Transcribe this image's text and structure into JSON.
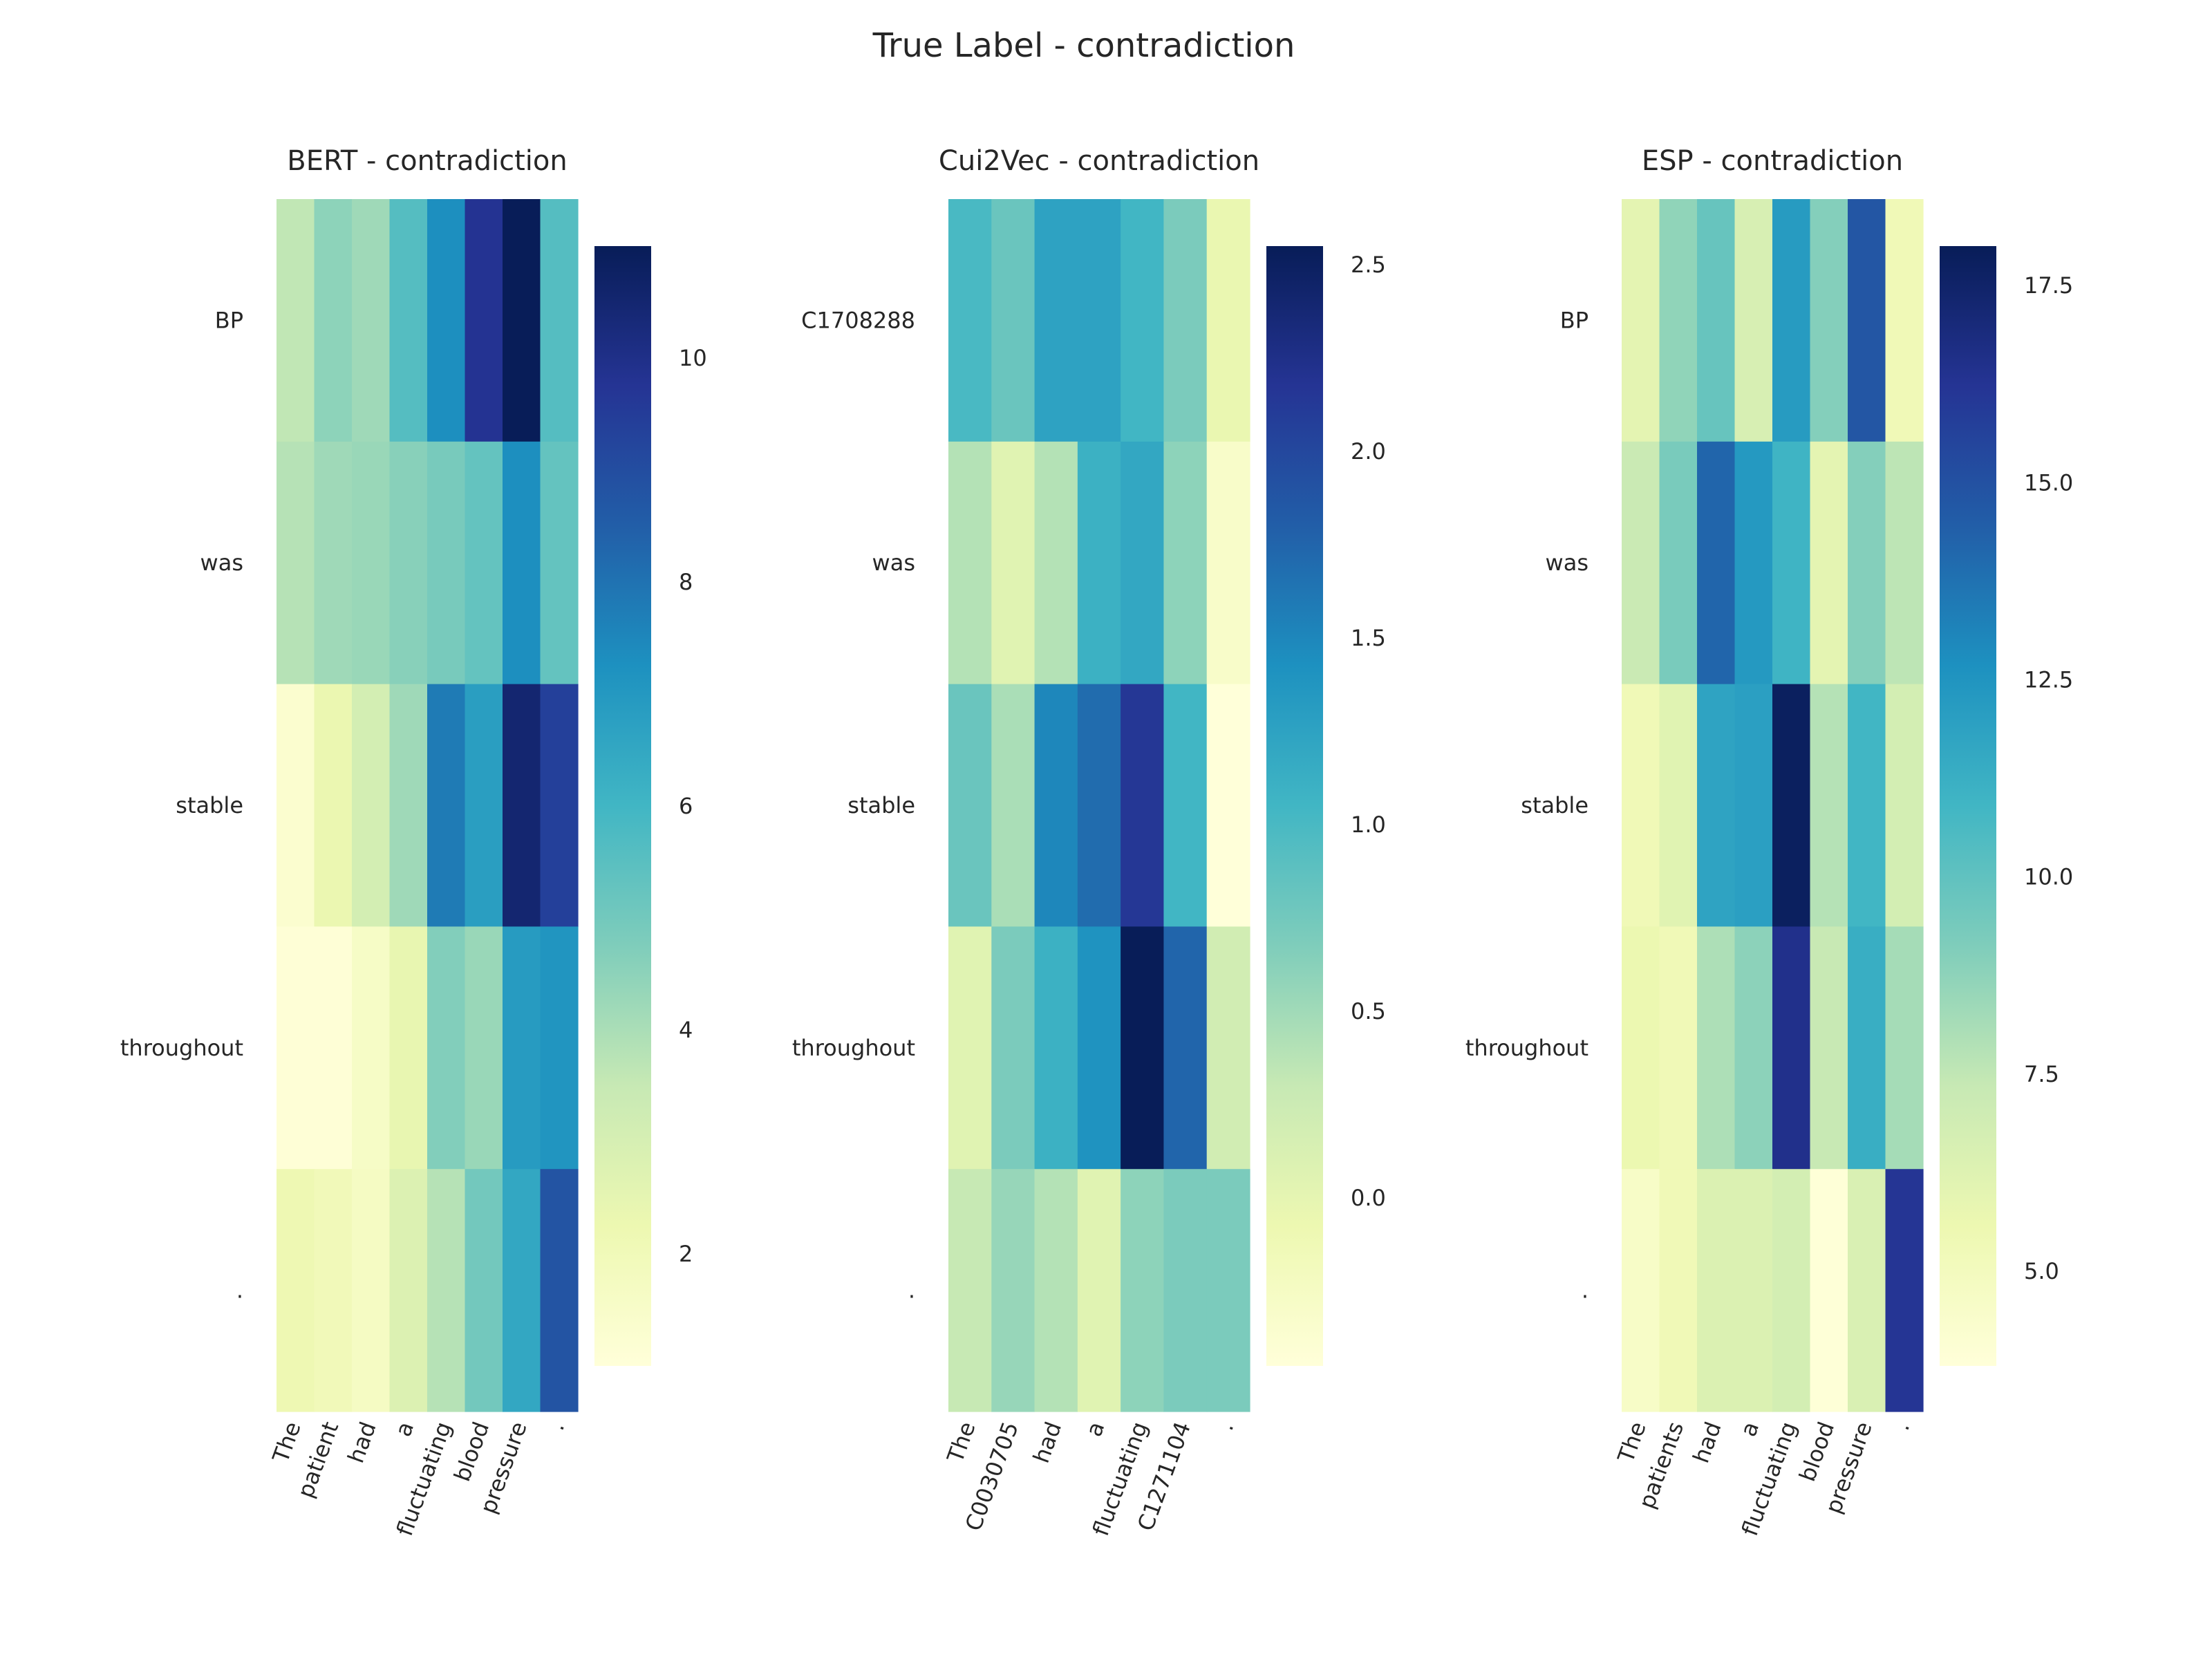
{
  "figure": {
    "title": "True Label - contradiction"
  },
  "chart_data": [
    {
      "type": "heatmap",
      "title": "BERT - contradiction",
      "colormap": "YlGnBu",
      "x_labels": [
        "The",
        "patient",
        "had",
        "a",
        "fluctuating",
        "blood",
        "pressure",
        "."
      ],
      "y_labels": [
        "BP",
        "was",
        "stable",
        "throughout",
        "."
      ],
      "values": [
        [
          3.6,
          4.5,
          4.2,
          5.6,
          7.3,
          9.8,
          11.0,
          5.6
        ],
        [
          3.8,
          4.2,
          4.3,
          4.6,
          4.9,
          5.3,
          7.3,
          5.3
        ],
        [
          1.3,
          2.3,
          3.1,
          4.2,
          7.8,
          6.8,
          10.5,
          9.4
        ],
        [
          1.1,
          1.1,
          1.6,
          2.4,
          4.7,
          4.3,
          6.9,
          7.1
        ],
        [
          2.2,
          2.0,
          1.7,
          2.8,
          3.8,
          5.0,
          6.5,
          8.8
        ]
      ],
      "colorbar": {
        "min": 1.0,
        "max": 11.0,
        "ticks": [
          2,
          4,
          6,
          8,
          10
        ],
        "tick_labels": [
          "2",
          "4",
          "6",
          "8",
          "10"
        ]
      }
    },
    {
      "type": "heatmap",
      "title": "Cui2Vec - contradiction",
      "colormap": "YlGnBu",
      "x_labels": [
        "The",
        "C0030705",
        "had",
        "a",
        "fluctuating",
        "C1271104",
        "."
      ],
      "y_labels": [
        "C1708288",
        "was",
        "stable",
        "throughout",
        "."
      ],
      "values": [
        [
          1.0,
          0.8,
          1.25,
          1.25,
          1.05,
          0.7,
          -0.05
        ],
        [
          0.4,
          0.05,
          0.4,
          1.1,
          1.2,
          0.6,
          -0.3
        ],
        [
          0.8,
          0.45,
          1.5,
          1.7,
          2.15,
          1.05,
          -0.45
        ],
        [
          0.05,
          0.7,
          1.1,
          1.4,
          2.55,
          1.75,
          0.2
        ],
        [
          0.3,
          0.55,
          0.4,
          0.05,
          0.6,
          0.7,
          0.7
        ]
      ],
      "colorbar": {
        "min": -0.45,
        "max": 2.55,
        "ticks": [
          0.0,
          0.5,
          1.0,
          1.5,
          2.0,
          2.5
        ],
        "tick_labels": [
          "0.0",
          "0.5",
          "1.0",
          "1.5",
          "2.0",
          "2.5"
        ]
      }
    },
    {
      "type": "heatmap",
      "title": "ESP - contradiction",
      "colormap": "YlGnBu",
      "x_labels": [
        "The",
        "patients",
        "had",
        "a",
        "fluctuating",
        "blood",
        "pressure",
        "."
      ],
      "y_labels": [
        "BP",
        "was",
        "stable",
        "throughout",
        "."
      ],
      "values": [
        [
          6.0,
          8.7,
          9.8,
          6.6,
          12.2,
          9.0,
          14.8,
          5.3
        ],
        [
          7.2,
          9.3,
          14.2,
          12.3,
          11.0,
          6.0,
          9.0,
          7.6
        ],
        [
          5.3,
          6.2,
          11.8,
          12.0,
          17.8,
          7.8,
          10.9,
          6.8
        ],
        [
          5.6,
          5.3,
          8.0,
          8.8,
          16.5,
          7.3,
          11.3,
          8.2
        ],
        [
          4.6,
          5.3,
          6.4,
          6.4,
          6.8,
          3.9,
          6.5,
          16.2
        ]
      ],
      "colorbar": {
        "min": 3.8,
        "max": 18.0,
        "ticks": [
          5.0,
          7.5,
          10.0,
          12.5,
          15.0,
          17.5
        ],
        "tick_labels": [
          "5.0",
          "7.5",
          "10.0",
          "12.5",
          "15.0",
          "17.5"
        ]
      }
    }
  ]
}
